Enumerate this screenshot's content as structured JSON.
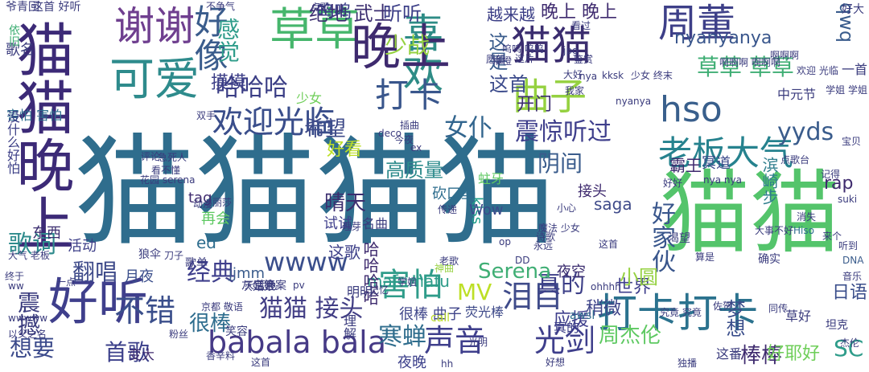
{
  "words": [
    {
      "text": "猫猫猫猫",
      "color": "#2f6d8d"
    },
    {
      "text": "猫猫",
      "color": "#54c46b"
    },
    {
      "text": "猫猫晚上",
      "color": "#3c2a77"
    },
    {
      "text": "好听",
      "color": "#3f3f8c"
    },
    {
      "text": "可爱",
      "color": "#2e8b8c"
    },
    {
      "text": "谢谢",
      "color": "#6f3f8f"
    },
    {
      "text": "好像",
      "color": "#3a5c8c"
    },
    {
      "text": "草草",
      "color": "#46b66c"
    },
    {
      "text": "喜欢",
      "color": "#2e8c86"
    },
    {
      "text": "晚上",
      "color": "#3e2a6e"
    },
    {
      "text": "猫猫",
      "color": "#3b2d6f"
    },
    {
      "text": "周董",
      "color": "#3d3f88"
    },
    {
      "text": "打卡",
      "color": "#39568c"
    },
    {
      "text": "曲子",
      "color": "#95d140"
    },
    {
      "text": "hso",
      "color": "#395f8c"
    },
    {
      "text": "老板大气",
      "color": "#26828e"
    },
    {
      "text": "打卡打卡",
      "color": "#2b728e"
    },
    {
      "text": "欢迎光临",
      "color": "#3b4a8b"
    },
    {
      "text": "欢迎光临",
      "color": "#3a4e8b"
    },
    {
      "text": "害怕",
      "color": "#2f9c8a"
    },
    {
      "text": "babala bala",
      "color": "#463a86"
    },
    {
      "text": "wwww",
      "color": "#3a4e8b"
    },
    {
      "text": "猫猫 接头",
      "color": "#423e85"
    },
    {
      "text": "泪目",
      "color": "#3f4b8a"
    },
    {
      "text": "声音",
      "color": "#3f3f8c"
    },
    {
      "text": "光剑",
      "color": "#3f3f8c"
    },
    {
      "text": "寒蝉",
      "color": "#2f6d8d"
    },
    {
      "text": "震惊听过",
      "color": "#3f3f8c"
    },
    {
      "text": "女仆",
      "color": "#32658e"
    },
    {
      "text": "哈哈哈",
      "color": "#3a3d85"
    },
    {
      "text": "少战",
      "color": "#95d140"
    },
    {
      "text": "感觉",
      "color": "#2e9c8a"
    },
    {
      "text": "希望",
      "color": "#3f4b8a"
    },
    {
      "text": "草草 草草",
      "color": "#3fae74"
    },
    {
      "text": "yyds",
      "color": "#3a5c8c"
    },
    {
      "text": "MV",
      "color": "#bddf26"
    },
    {
      "text": "真的",
      "color": "#3d3f88"
    },
    {
      "text": "首歌",
      "color": "#3b3f8a"
    },
    {
      "text": "想要",
      "color": "#3b4a8b"
    },
    {
      "text": "不错",
      "color": "#3a4e8b"
    },
    {
      "text": "很棒",
      "color": "#2e6d8e"
    },
    {
      "text": "经典",
      "color": "#3f3f8c"
    },
    {
      "text": "震撼",
      "color": "#3a3b7d"
    },
    {
      "text": "翻唱",
      "color": "#3f4b8a"
    },
    {
      "text": "歌词",
      "color": "#2e8b8c"
    },
    {
      "text": "SC",
      "color": "#2e9c8a"
    },
    {
      "text": "好家伙",
      "color": "#39568c"
    },
    {
      "text": "晴天",
      "color": "#3b2d6f"
    },
    {
      "text": "Serena",
      "color": "#3fae74"
    },
    {
      "text": "周杰伦",
      "color": "#5ec962"
    },
    {
      "text": "棒棒",
      "color": "#3e2a6e"
    },
    {
      "text": "好耶好",
      "color": "#6ece58"
    },
    {
      "text": "梦想",
      "color": "#3a4e8b"
    },
    {
      "text": "摸摸",
      "color": "#3d3f88"
    },
    {
      "text": "开门",
      "color": "#3b2d6f"
    },
    {
      "text": "阴间",
      "color": "#3a5c8c"
    },
    {
      "text": "这首",
      "color": "#3b4a8b"
    },
    {
      "text": "这是",
      "color": "#3a5c8c"
    },
    {
      "text": "晚上 晚上",
      "color": "#3e2a6e"
    },
    {
      "text": "越来越",
      "color": "#3a3d85"
    },
    {
      "text": "绝地 武士",
      "color": "#3b2d6f"
    },
    {
      "text": "听听",
      "color": "#3d3f88"
    },
    {
      "text": "呜呜",
      "color": "#3b3f8a"
    },
    {
      "text": "nyanyanya",
      "color": "#39568c"
    },
    {
      "text": "qwq",
      "color": "#3a5c8c"
    },
    {
      "text": "应援",
      "color": "#3f3f8c"
    },
    {
      "text": "日语",
      "color": "#3a4e8b"
    },
    {
      "text": "世界",
      "color": "#3f3f8c"
    },
    {
      "text": "小圆",
      "color": "#95d140"
    },
    {
      "text": "稍微",
      "color": "#3e4489"
    },
    {
      "text": "很棒 曲子",
      "color": "#3e4489"
    },
    {
      "text": "好看",
      "color": "#bddf26"
    },
    {
      "text": "高质量",
      "color": "#2e8b8c"
    },
    {
      "text": "rap",
      "color": "#3e2a6e"
    },
    {
      "text": "saga",
      "color": "#3f4b8a"
    },
    {
      "text": "接头",
      "color": "#3e2a6e"
    },
    {
      "text": "霸王",
      "color": "#3e2a6e"
    },
    {
      "text": "冥道",
      "color": "#3b4a8b"
    },
    {
      "text": "滨崎步",
      "color": "#2e7d8c"
    },
    {
      "text": "mafumafu",
      "color": "#2e9c8a"
    },
    {
      "text": "这歌",
      "color": "#3d3f88"
    },
    {
      "text": "活动",
      "color": "#3d3f88"
    },
    {
      "text": "东西",
      "color": "#3b2d6f"
    },
    {
      "text": "试试",
      "color": "#3f3f8c"
    },
    {
      "text": "哈哈哈哈",
      "color": "#3e2a6e"
    },
    {
      "text": "ed",
      "color": "#2e6d8e"
    },
    {
      "text": "再会",
      "color": "#5ec962"
    },
    {
      "text": "月夜",
      "color": "#3a4e8b"
    },
    {
      "text": "jjmm",
      "color": "#3a5c8c"
    },
    {
      "text": "tag",
      "color": "#3e2a6e"
    },
    {
      "text": "kiss",
      "color": "#1f9e89"
    },
    {
      "text": "Wow",
      "color": "#3b4a8b"
    },
    {
      "text": "砍口垒",
      "color": "#2e6d8e"
    },
    {
      "text": "蛀牙",
      "color": "#5ec962"
    },
    {
      "text": "名曲",
      "color": "#3a3b7d"
    },
    {
      "text": "一首",
      "color": "#3a3b7d"
    },
    {
      "text": "中元节",
      "color": "#3a3b7d"
    },
    {
      "text": "好大",
      "color": "#3a3b7d"
    },
    {
      "text": "歌名",
      "color": "#3a3b7d"
    },
    {
      "text": "爷青回",
      "color": "#3a3b7d"
    },
    {
      "text": "这首 好听",
      "color": "#3a3b7d"
    },
    {
      "text": "少女",
      "color": "#6ece58"
    },
    {
      "text": "害怕 害怕",
      "color": "#2e6d8e"
    },
    {
      "text": "没什么好怕",
      "color": "#3a3d85"
    },
    {
      "text": "依旧",
      "color": "#3fae74"
    },
    {
      "text": "夜空",
      "color": "#3b2d6f"
    },
    {
      "text": "真的",
      "color": "#3d3f88"
    },
    {
      "text": "荧光棒",
      "color": "#3f4b8a"
    },
    {
      "text": "夜晚",
      "color": "#3b3f8a"
    },
    {
      "text": "变大",
      "color": "#3e2a6e"
    },
    {
      "text": "笑容",
      "color": "#3a3b7d"
    },
    {
      "text": "京都 敬语",
      "color": "#3a3b7d"
    },
    {
      "text": "明明",
      "color": "#3a3b7d"
    },
    {
      "text": "call",
      "color": "#bddf26"
    },
    {
      "text": "awsl",
      "color": "#2e6d8e"
    },
    {
      "text": "草好",
      "color": "#3a3b7d"
    },
    {
      "text": "这番",
      "color": "#3a3b7d"
    },
    {
      "text": "坦克",
      "color": "#3a3b7d"
    },
    {
      "text": "理解",
      "color": "#3a3b7d"
    },
    {
      "text": "神曲",
      "color": "#95d140"
    },
    {
      "text": "狼伞",
      "color": "#3a3b7d"
    },
    {
      "text": "刀子",
      "color": "#3a3b7d"
    },
    {
      "text": "歌单",
      "color": "#3a3b7d"
    },
    {
      "text": "蓝色",
      "color": "#3a3b7d"
    },
    {
      "text": "确实",
      "color": "#3a3b7d"
    },
    {
      "text": "大事不好",
      "color": "#3a3b7d"
    },
    {
      "text": "音乐",
      "color": "#3a3b7d"
    },
    {
      "text": "听到",
      "color": "#3a3b7d"
    },
    {
      "text": "来个",
      "color": "#3a3b7d"
    },
    {
      "text": "消失",
      "color": "#3a3b7d"
    },
    {
      "text": "Hiso",
      "color": "#2e6d8e"
    },
    {
      "text": "DNA",
      "color": "#3a5c8c"
    },
    {
      "text": "suki",
      "color": "#3a3b7d"
    },
    {
      "text": "ohhhh",
      "color": "#3a3b7d"
    },
    {
      "text": "学姐",
      "color": "#3a3b7d"
    },
    {
      "text": "灰姑娘",
      "color": "#3a3b7d"
    },
    {
      "text": "答案",
      "color": "#3a3b7d"
    },
    {
      "text": "天空",
      "color": "#3a3b7d"
    },
    {
      "text": "一点",
      "color": "#3a3b7d"
    },
    {
      "text": "渴望",
      "color": "#3a3b7d"
    },
    {
      "text": "永远",
      "color": "#3a3b7d"
    },
    {
      "text": "理芽",
      "color": "#3a3b7d"
    },
    {
      "text": "魔法 少女",
      "color": "#3a3b7d"
    },
    {
      "text": "传递",
      "color": "#3a3b7d"
    },
    {
      "text": "评论",
      "color": "#3a3b7d"
    },
    {
      "text": "急死人",
      "color": "#3a3b7d"
    },
    {
      "text": "看不懂",
      "color": "#3a3b7d"
    },
    {
      "text": "点歌台",
      "color": "#3a3b7d"
    },
    {
      "text": "记得",
      "color": "#3a3b7d"
    },
    {
      "text": "插曲",
      "color": "#3a3b7d"
    },
    {
      "text": "双手",
      "color": "#3a3b7d"
    },
    {
      "text": "不争气",
      "color": "#3a3b7d"
    },
    {
      "text": "点歌",
      "color": "#3a3b7d"
    },
    {
      "text": "看过",
      "color": "#3a3b7d"
    },
    {
      "text": "jpg",
      "color": "#3a3b7d"
    },
    {
      "text": "nya",
      "color": "#3a3b7d"
    },
    {
      "text": "kksk",
      "color": "#3a3b7d"
    },
    {
      "text": "啊啊啊 啊啊啊",
      "color": "#3a3b7d"
    },
    {
      "text": "啊啊啊",
      "color": "#3a3b7d"
    },
    {
      "text": "欢迎 光临",
      "color": "#3a3b7d"
    },
    {
      "text": "宝贝",
      "color": "#3a3b7d"
    },
    {
      "text": "学姐 学姐",
      "color": "#3a3b7d"
    },
    {
      "text": "nyanya",
      "color": "#3a3b7d"
    },
    {
      "text": "少女 终末",
      "color": "#3a3b7d"
    },
    {
      "text": "鉴赏",
      "color": "#3a3b7d"
    },
    {
      "text": "愿望",
      "color": "#3a3b7d"
    },
    {
      "text": "大好",
      "color": "#3a3b7d"
    },
    {
      "text": "我家",
      "color": "#3a3b7d"
    },
    {
      "text": "这片",
      "color": "#3a3b7d"
    },
    {
      "text": "柳橙",
      "color": "#3a3b7d"
    },
    {
      "text": "呜呜 呜呜",
      "color": "#3a3b7d"
    },
    {
      "text": "今夜",
      "color": "#3a3b7d"
    },
    {
      "text": "deco",
      "color": "#3a3b7d"
    },
    {
      "text": "ex",
      "color": "#3a3b7d"
    },
    {
      "text": "花园 serena",
      "color": "#3a3b7d"
    },
    {
      "text": "动漫",
      "color": "#3a3b7d"
    },
    {
      "text": "丽莎",
      "color": "#3a3b7d"
    },
    {
      "text": "大气 老板",
      "color": "#3a3b7d"
    },
    {
      "text": "终于",
      "color": "#3a3b7d"
    },
    {
      "text": "ww",
      "color": "#3a3b7d"
    },
    {
      "text": "wwwww",
      "color": "#3a3b7d"
    },
    {
      "text": "以父之名",
      "color": "#3a3b7d"
    },
    {
      "text": "粉丝",
      "color": "#3a3b7d"
    },
    {
      "text": "香辛料",
      "color": "#3a3b7d"
    },
    {
      "text": "这首",
      "color": "#3a3b7d"
    },
    {
      "text": "光明",
      "color": "#3a3b7d"
    },
    {
      "text": "hh",
      "color": "#3a3b7d"
    },
    {
      "text": "独播",
      "color": "#3a3b7d"
    },
    {
      "text": "佐贺",
      "color": "#3a3b7d"
    },
    {
      "text": "究竟 究竟",
      "color": "#3a3b7d"
    },
    {
      "text": "算是",
      "color": "#3a3b7d"
    },
    {
      "text": "同传",
      "color": "#3a3b7d"
    },
    {
      "text": "杰伦",
      "color": "#3a3b7d"
    },
    {
      "text": "老歌",
      "color": "#3a3b7d"
    },
    {
      "text": "DD",
      "color": "#3a3b7d"
    },
    {
      "text": "pv",
      "color": "#3a3b7d"
    },
    {
      "text": "记忆",
      "color": "#3a3b7d"
    },
    {
      "text": "op",
      "color": "#3a3b7d"
    },
    {
      "text": "小心",
      "color": "#3a3b7d"
    },
    {
      "text": "诗歌",
      "color": "#3a3b7d"
    },
    {
      "text": "nya nya",
      "color": "#3a3b7d"
    },
    {
      "text": "这首",
      "color": "#3a3b7d"
    },
    {
      "text": "好好",
      "color": "#3a3b7d"
    },
    {
      "text": "好想",
      "color": "#3a3b7d"
    }
  ]
}
